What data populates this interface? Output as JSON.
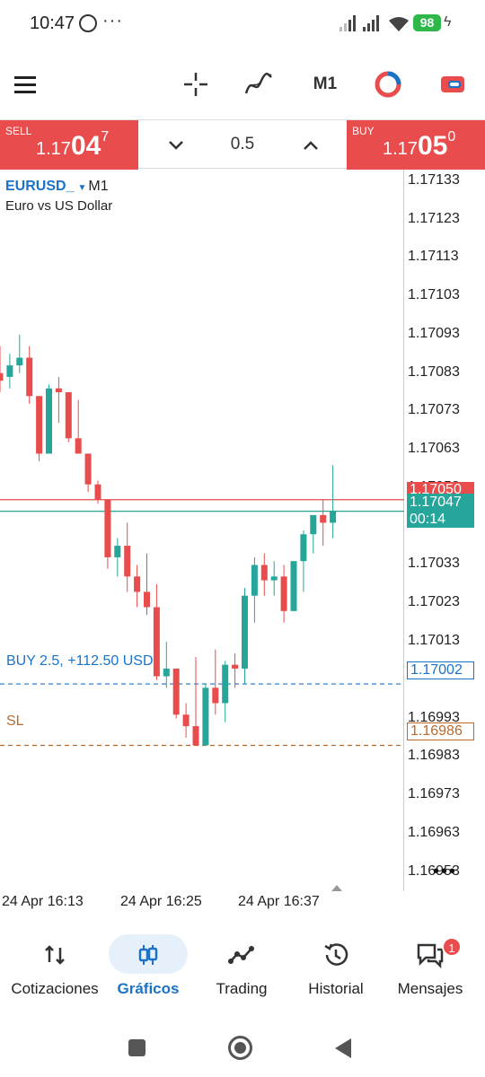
{
  "status": {
    "time": "10:47",
    "dots": "···",
    "battery": "98"
  },
  "toolbar": {
    "timeframe": "M1"
  },
  "trade": {
    "sell_label": "SELL",
    "buy_label": "BUY",
    "sell_price": {
      "prefix": "1.17",
      "big": "04",
      "sup": "7"
    },
    "buy_price": {
      "prefix": "1.17",
      "big": "05",
      "sup": "0"
    },
    "volume": "0.5"
  },
  "chart": {
    "symbol": "EURUSD_",
    "timeframe": "M1",
    "description": "Euro vs US Dollar",
    "position_label": "BUY 2.5,  +112.50 USD",
    "sl_label": "SL",
    "colors": {
      "bull": "#26a69a",
      "bear": "#e84c4c",
      "position": "#1a73c9",
      "sl": "#b86a2e"
    },
    "price_ticks": [
      "1.17133",
      "1.17123",
      "1.17113",
      "1.17103",
      "1.17093",
      "1.17083",
      "1.17073",
      "1.17063",
      "1.17053",
      "1.17033",
      "1.17023",
      "1.17013",
      "1.16993",
      "1.16983",
      "1.16973",
      "1.16963",
      "1.16953"
    ],
    "tags": {
      "ask": "1.17050",
      "bid": "1.17047",
      "countdown": "00:14",
      "position": "1.17002",
      "sl": "1.16986"
    },
    "time_labels": [
      "24 Apr 16:13",
      "24 Apr 16:25",
      "24 Apr 16:37"
    ],
    "more": "•••"
  },
  "chart_data": {
    "type": "candlestick",
    "title": "EURUSD_",
    "subtitle": "Euro vs US Dollar",
    "timeframe": "M1",
    "ylim": [
      1.16948,
      1.17136
    ],
    "candles": [
      {
        "o": 1.17083,
        "h": 1.1709,
        "l": 1.17078,
        "c": 1.17081
      },
      {
        "o": 1.17082,
        "h": 1.17088,
        "l": 1.17079,
        "c": 1.17085
      },
      {
        "o": 1.17085,
        "h": 1.17093,
        "l": 1.17083,
        "c": 1.17087
      },
      {
        "o": 1.17087,
        "h": 1.1709,
        "l": 1.17075,
        "c": 1.17077
      },
      {
        "o": 1.17077,
        "h": 1.17077,
        "l": 1.1706,
        "c": 1.17062
      },
      {
        "o": 1.17062,
        "h": 1.1708,
        "l": 1.17062,
        "c": 1.17079
      },
      {
        "o": 1.17079,
        "h": 1.17082,
        "l": 1.1707,
        "c": 1.17078
      },
      {
        "o": 1.17078,
        "h": 1.17078,
        "l": 1.17065,
        "c": 1.17066
      },
      {
        "o": 1.17066,
        "h": 1.17076,
        "l": 1.17062,
        "c": 1.17062
      },
      {
        "o": 1.17062,
        "h": 1.17062,
        "l": 1.17052,
        "c": 1.17054
      },
      {
        "o": 1.17054,
        "h": 1.17055,
        "l": 1.17049,
        "c": 1.1705
      },
      {
        "o": 1.1705,
        "h": 1.1705,
        "l": 1.17032,
        "c": 1.17035
      },
      {
        "o": 1.17035,
        "h": 1.1704,
        "l": 1.1703,
        "c": 1.17038
      },
      {
        "o": 1.17038,
        "h": 1.17044,
        "l": 1.17026,
        "c": 1.1703
      },
      {
        "o": 1.1703,
        "h": 1.17033,
        "l": 1.17022,
        "c": 1.17026
      },
      {
        "o": 1.17026,
        "h": 1.17036,
        "l": 1.1702,
        "c": 1.17022
      },
      {
        "o": 1.17022,
        "h": 1.17028,
        "l": 1.17003,
        "c": 1.17004
      },
      {
        "o": 1.17004,
        "h": 1.17013,
        "l": 1.17001,
        "c": 1.17006
      },
      {
        "o": 1.17006,
        "h": 1.17006,
        "l": 1.16993,
        "c": 1.16994
      },
      {
        "o": 1.16994,
        "h": 1.16997,
        "l": 1.16988,
        "c": 1.16991
      },
      {
        "o": 1.16991,
        "h": 1.17009,
        "l": 1.16986,
        "c": 1.16986
      },
      {
        "o": 1.16986,
        "h": 1.17002,
        "l": 1.16986,
        "c": 1.17001
      },
      {
        "o": 1.17001,
        "h": 1.17011,
        "l": 1.16994,
        "c": 1.16997
      },
      {
        "o": 1.16997,
        "h": 1.17008,
        "l": 1.16992,
        "c": 1.17007
      },
      {
        "o": 1.17007,
        "h": 1.1701,
        "l": 1.17001,
        "c": 1.17006
      },
      {
        "o": 1.17006,
        "h": 1.17027,
        "l": 1.17002,
        "c": 1.17025
      },
      {
        "o": 1.17025,
        "h": 1.17035,
        "l": 1.17018,
        "c": 1.17033
      },
      {
        "o": 1.17033,
        "h": 1.17036,
        "l": 1.17025,
        "c": 1.17029
      },
      {
        "o": 1.17029,
        "h": 1.17034,
        "l": 1.17025,
        "c": 1.1703
      },
      {
        "o": 1.1703,
        "h": 1.17033,
        "l": 1.17018,
        "c": 1.17021
      },
      {
        "o": 1.17021,
        "h": 1.17034,
        "l": 1.17021,
        "c": 1.17034
      },
      {
        "o": 1.17034,
        "h": 1.17042,
        "l": 1.17026,
        "c": 1.17041
      },
      {
        "o": 1.17041,
        "h": 1.17046,
        "l": 1.17036,
        "c": 1.17046
      },
      {
        "o": 1.17046,
        "h": 1.1705,
        "l": 1.17038,
        "c": 1.17044
      },
      {
        "o": 1.17044,
        "h": 1.17059,
        "l": 1.1704,
        "c": 1.17047
      }
    ],
    "lines": [
      {
        "name": "ask",
        "value": 1.1705
      },
      {
        "name": "bid",
        "value": 1.17047
      },
      {
        "name": "position",
        "value": 1.17002
      },
      {
        "name": "sl",
        "value": 1.16986
      }
    ],
    "xlabels": [
      "24 Apr 16:13",
      "24 Apr 16:25",
      "24 Apr 16:37"
    ],
    "grid": false
  },
  "nav": {
    "items": [
      {
        "label": "Cotizaciones"
      },
      {
        "label": "Gráficos"
      },
      {
        "label": "Trading"
      },
      {
        "label": "Historial"
      },
      {
        "label": "Mensajes"
      }
    ],
    "badge": "1"
  }
}
